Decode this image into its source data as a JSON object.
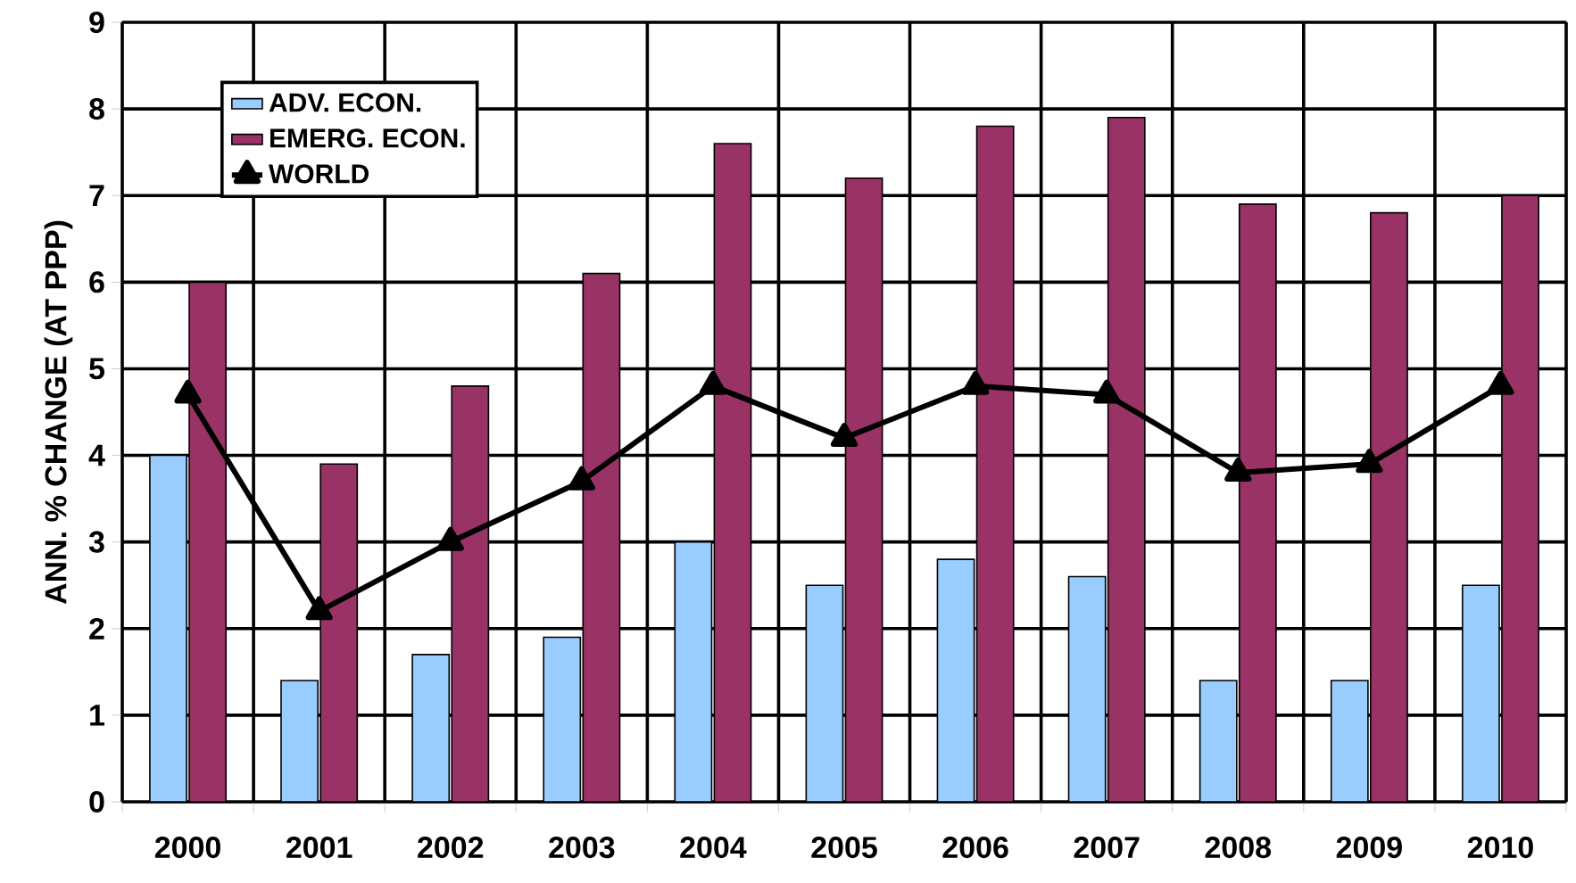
{
  "chart_data": {
    "type": "bar",
    "ylabel": "ANN. % CHANGE (AT PPP)",
    "categories": [
      "2000",
      "2001",
      "2002",
      "2003",
      "2004",
      "2005",
      "2006",
      "2007",
      "2008",
      "2009",
      "2010"
    ],
    "series": [
      {
        "name": "ADV. ECON.",
        "color": "#99ccff",
        "values": [
          4.0,
          1.4,
          1.7,
          1.9,
          3.0,
          2.5,
          2.8,
          2.6,
          1.4,
          1.4,
          2.5
        ]
      },
      {
        "name": "EMERG. ECON.",
        "color": "#993366",
        "values": [
          6.0,
          3.9,
          4.8,
          6.1,
          7.6,
          7.2,
          7.8,
          7.9,
          6.9,
          6.8,
          7.0
        ]
      },
      {
        "name": "WORLD",
        "type": "line",
        "color": "#000000",
        "marker": "triangle",
        "values": [
          4.7,
          2.2,
          3.0,
          3.7,
          4.8,
          4.2,
          4.8,
          4.7,
          3.8,
          3.9,
          4.8
        ]
      }
    ],
    "ylim": [
      0,
      9
    ],
    "yticks": [
      0,
      1,
      2,
      3,
      4,
      5,
      6,
      7,
      8,
      9
    ],
    "grid": true,
    "legend": "top left"
  }
}
